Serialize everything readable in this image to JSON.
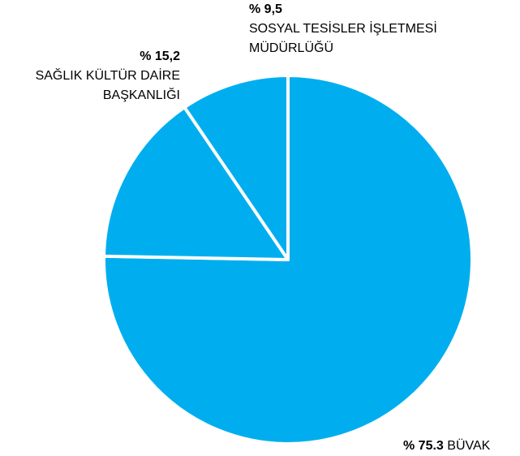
{
  "chart_data": {
    "type": "pie",
    "categories": [
      "BÜVAK",
      "SAĞLIK KÜLTÜR DAİRE BAŞKANLIĞI",
      "SOSYAL TESİSLER İŞLETMESİ MÜDÜRLÜĞÜ"
    ],
    "values": [
      75.3,
      15.2,
      9.5
    ],
    "value_labels": [
      "% 75.3",
      "% 15,2",
      "% 9,5"
    ],
    "color": "#00aeef"
  }
}
